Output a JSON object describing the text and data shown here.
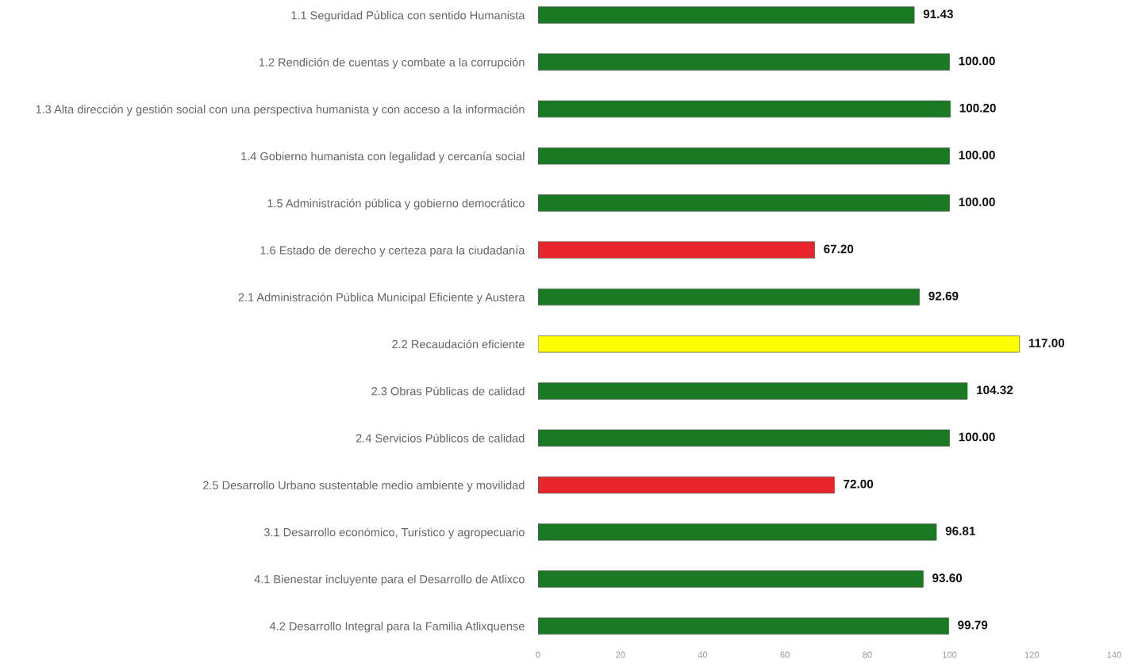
{
  "chart_data": {
    "type": "bar",
    "orientation": "horizontal",
    "categories": [
      "1.1 Seguridad Pública con sentido Humanista",
      "1.2 Rendición de cuentas y combate a la corrupción",
      "1.3 Alta dirección y gestión social con una perspectiva humanista y con acceso a la información",
      "1.4 Gobierno humanista con legalidad y cercanía social",
      "1.5 Administración pública y gobierno democrático",
      "1.6 Estado de derecho y certeza para la ciudadanía",
      "2.1 Administración Pública Municipal Eficiente y Austera",
      "2.2 Recaudación eficiente",
      "2.3 Obras Públicas de calidad",
      "2.4 Servicios Públicos de calidad",
      "2.5 Desarrollo Urbano sustentable medio ambiente y movilidad",
      "3.1 Desarrollo económico, Turístico y agropecuario",
      "4.1 Bienestar incluyente para el Desarrollo de Atlixco",
      "4.2 Desarrollo Integral para la Familia Atlixquense"
    ],
    "values": [
      91.43,
      100.0,
      100.2,
      100.0,
      100.0,
      67.2,
      92.69,
      117.0,
      104.32,
      100.0,
      72.0,
      96.81,
      93.6,
      99.79
    ],
    "value_labels": [
      "91.43",
      "100.00",
      "100.20",
      "100.00",
      "100.00",
      "67.20",
      "92.69",
      "117.00",
      "104.32",
      "100.00",
      "72.00",
      "96.81",
      "93.60",
      "99.79"
    ],
    "colors": [
      "#1a7a24",
      "#1a7a24",
      "#1a7a24",
      "#1a7a24",
      "#1a7a24",
      "#e8252a",
      "#1a7a24",
      "#ffff00",
      "#1a7a24",
      "#1a7a24",
      "#e8252a",
      "#1a7a24",
      "#1a7a24",
      "#1a7a24"
    ],
    "xlim": [
      0,
      140
    ],
    "xticks": [
      0,
      20,
      40,
      60,
      80,
      100,
      120,
      140
    ],
    "grid": false,
    "legend": false
  }
}
